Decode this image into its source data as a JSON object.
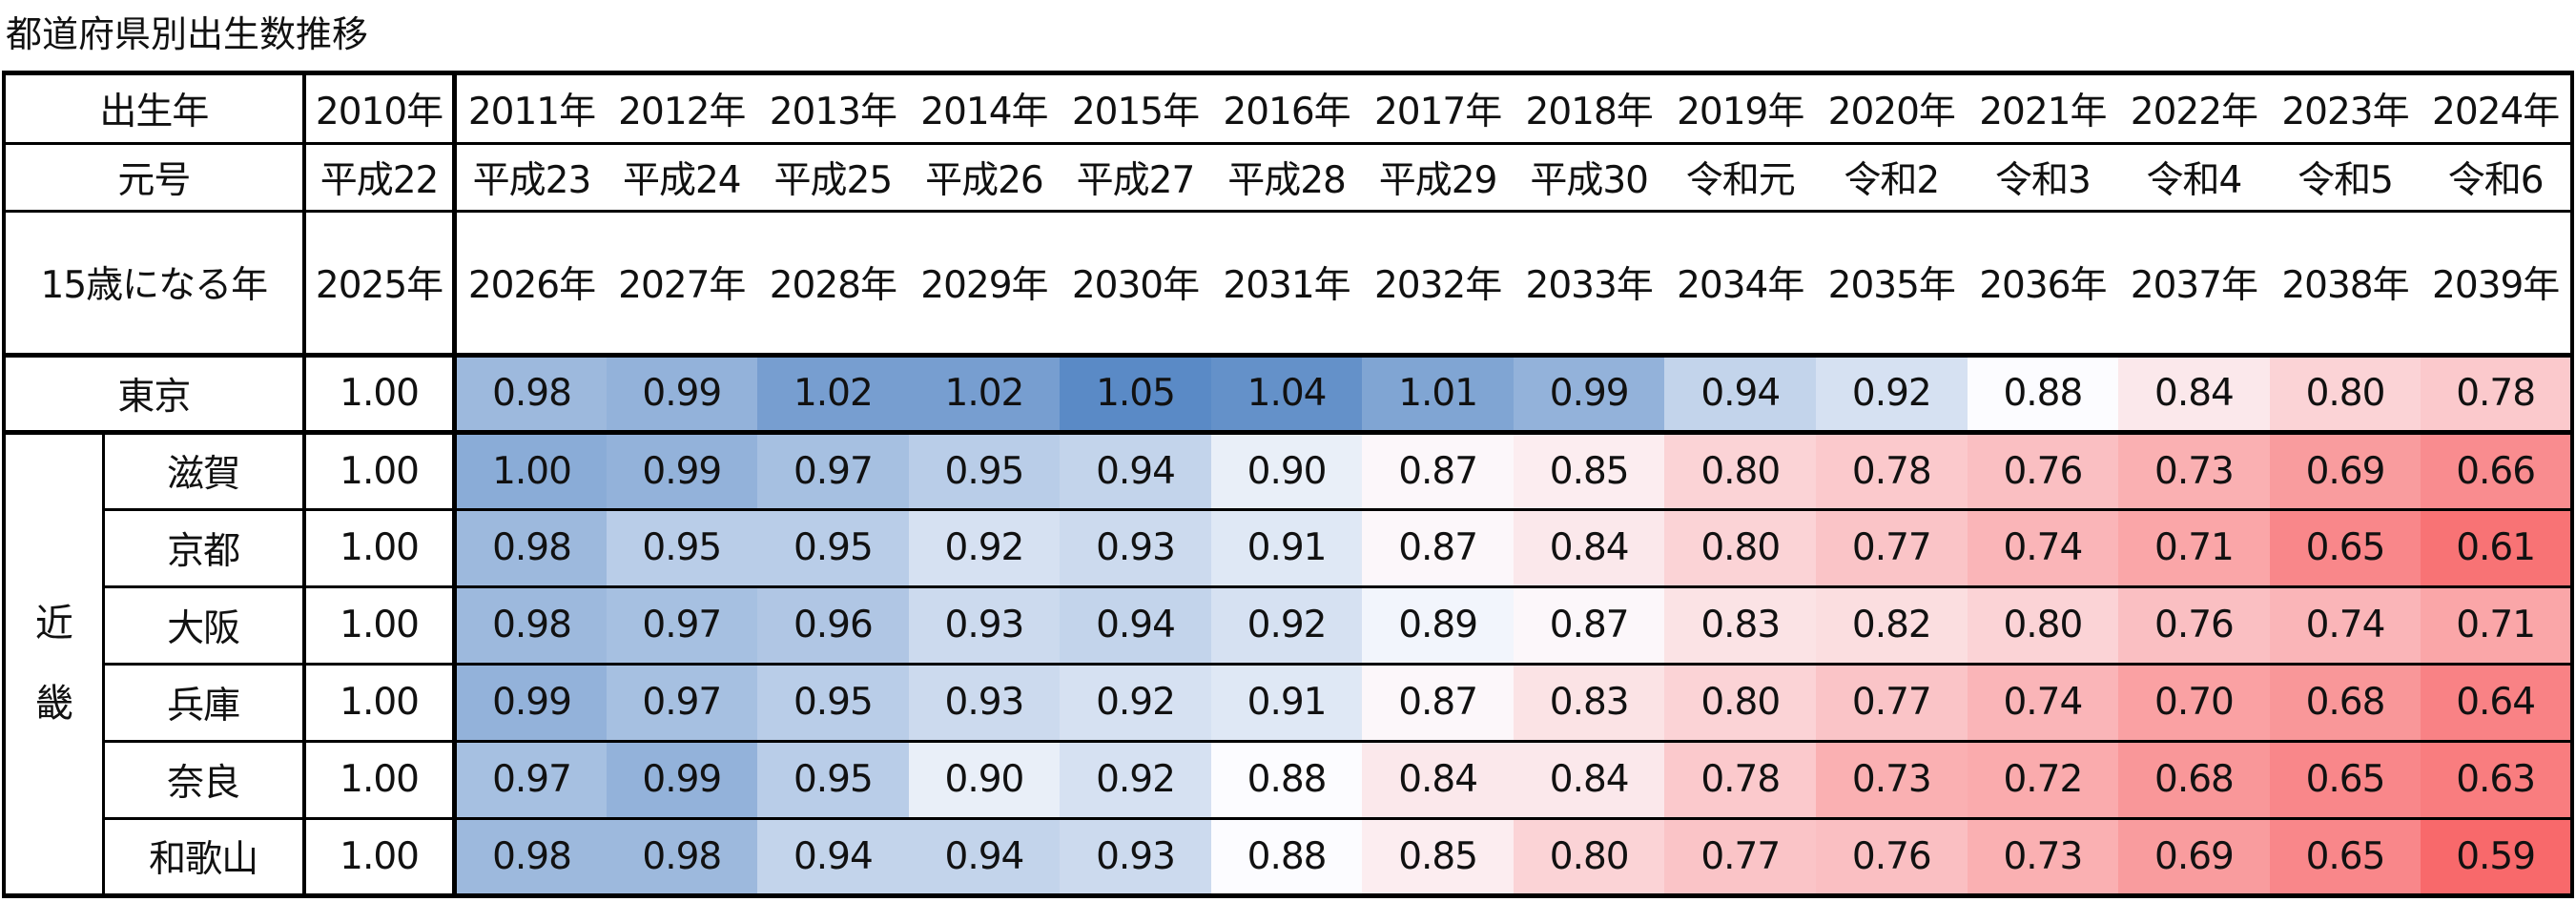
{
  "title": "都道府県別出生数推移",
  "chart_data": {
    "type": "heatmap",
    "title": "都道府県別出生数推移",
    "header_rows": [
      {
        "label": "出生年",
        "cells": [
          "2010年",
          "2011年",
          "2012年",
          "2013年",
          "2014年",
          "2015年",
          "2016年",
          "2017年",
          "2018年",
          "2019年",
          "2020年",
          "2021年",
          "2022年",
          "2023年",
          "2024年"
        ]
      },
      {
        "label": "元号",
        "cells": [
          "平成22",
          "平成23",
          "平成24",
          "平成25",
          "平成26",
          "平成27",
          "平成28",
          "平成29",
          "平成30",
          "令和元",
          "令和2",
          "令和3",
          "令和4",
          "令和5",
          "令和6"
        ]
      },
      {
        "label": "15歳になる年",
        "cells": [
          "2025年",
          "2026年",
          "2027年",
          "2028年",
          "2029年",
          "2030年",
          "2031年",
          "2032年",
          "2033年",
          "2034年",
          "2035年",
          "2036年",
          "2037年",
          "2038年",
          "2039年"
        ]
      }
    ],
    "region_label": "近\n畿",
    "rows": [
      {
        "name": "東京",
        "group": "",
        "values": [
          1.0,
          0.98,
          0.99,
          1.02,
          1.02,
          1.05,
          1.04,
          1.01,
          0.99,
          0.94,
          0.92,
          0.88,
          0.84,
          0.8,
          0.78
        ]
      },
      {
        "name": "滋賀",
        "group": "近畿",
        "values": [
          1.0,
          1.0,
          0.99,
          0.97,
          0.95,
          0.94,
          0.9,
          0.87,
          0.85,
          0.8,
          0.78,
          0.76,
          0.73,
          0.69,
          0.66
        ]
      },
      {
        "name": "京都",
        "group": "近畿",
        "values": [
          1.0,
          0.98,
          0.95,
          0.95,
          0.92,
          0.93,
          0.91,
          0.87,
          0.84,
          0.8,
          0.77,
          0.74,
          0.71,
          0.65,
          0.61
        ]
      },
      {
        "name": "大阪",
        "group": "近畿",
        "values": [
          1.0,
          0.98,
          0.97,
          0.96,
          0.93,
          0.94,
          0.92,
          0.89,
          0.87,
          0.83,
          0.82,
          0.8,
          0.76,
          0.74,
          0.71
        ]
      },
      {
        "name": "兵庫",
        "group": "近畿",
        "values": [
          1.0,
          0.99,
          0.97,
          0.95,
          0.93,
          0.92,
          0.91,
          0.87,
          0.83,
          0.8,
          0.77,
          0.74,
          0.7,
          0.68,
          0.64
        ]
      },
      {
        "name": "奈良",
        "group": "近畿",
        "values": [
          1.0,
          0.97,
          0.99,
          0.95,
          0.9,
          0.92,
          0.88,
          0.84,
          0.84,
          0.78,
          0.73,
          0.72,
          0.68,
          0.65,
          0.63
        ]
      },
      {
        "name": "和歌山",
        "group": "近畿",
        "values": [
          1.0,
          0.98,
          0.98,
          0.94,
          0.94,
          0.93,
          0.88,
          0.85,
          0.8,
          0.77,
          0.76,
          0.73,
          0.69,
          0.65,
          0.59
        ]
      }
    ],
    "color_scale": {
      "low": "#f8696b",
      "mid": "#fcfcff",
      "high": "#5a8ac6",
      "domain": [
        0.59,
        0.88,
        1.05
      ],
      "colored_columns": "2011年–2024年"
    }
  }
}
